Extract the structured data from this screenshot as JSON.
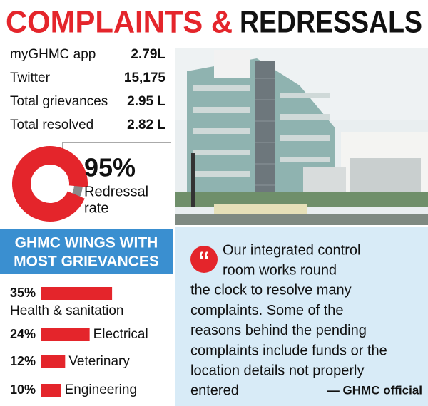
{
  "header": {
    "title_red": "COMPLAINTS &",
    "title_black": "REDRESSALS"
  },
  "stats": [
    {
      "label": "myGHMC app",
      "value": "2.79L"
    },
    {
      "label": "Twitter",
      "value": "15,175"
    },
    {
      "label": "Total grievances",
      "value": "2.95 L"
    },
    {
      "label": "Total resolved",
      "value": "2.82 L"
    }
  ],
  "chart_data": [
    {
      "type": "pie",
      "donut": true,
      "values": [
        95
      ],
      "value_labels": [
        "95%"
      ],
      "label_lines": [
        "Redressal",
        "rate"
      ],
      "color": "#e4252b",
      "rest_color": "#8a8a8a"
    },
    {
      "type": "bar",
      "title_lines": [
        "GHMC WINGS WITH",
        "MOST GRIEVANCES"
      ],
      "categories": [
        "Health & sanitation",
        "Electrical",
        "Veterinary",
        "Engineering"
      ],
      "values": [
        35,
        24,
        12,
        10
      ],
      "value_labels": [
        "35%",
        "24%",
        "12%",
        "10%"
      ],
      "color": "#e4252b"
    }
  ],
  "quote": {
    "lines": [
      "Our integrated control",
      "room works round",
      "the clock to resolve many",
      "complaints. Some of the",
      "reasons behind the pending",
      "complaints include funds or the",
      "location details not properly",
      "entered"
    ],
    "attribution": "— GHMC official"
  }
}
